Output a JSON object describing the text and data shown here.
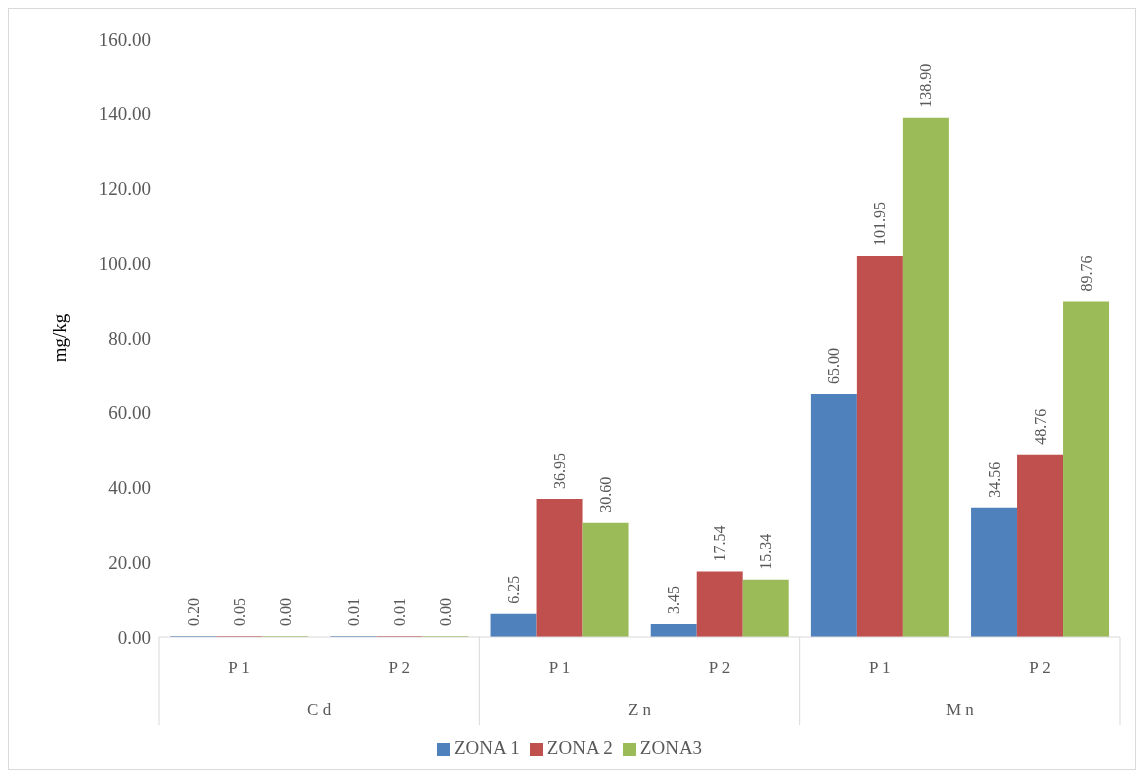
{
  "chart_data": {
    "type": "bar",
    "ylabel": "mg/kg",
    "categories": [
      "P 1",
      "P 2",
      "P 1",
      "P 2",
      "P 1",
      "P 2"
    ],
    "annotations": [
      "C d",
      "Z n",
      "M n"
    ],
    "series": [
      {
        "name": "ZONA 1",
        "color": "#4f81bd",
        "values": [
          0.2,
          0.01,
          6.25,
          3.45,
          65.0,
          34.56
        ],
        "value_labels": [
          "0.20",
          "0.01",
          "6.25",
          "3.45",
          "65.00",
          "34.56"
        ]
      },
      {
        "name": "ZONA 2",
        "color": "#c0504d",
        "values": [
          0.05,
          0.01,
          36.95,
          17.54,
          101.95,
          48.76
        ],
        "value_labels": [
          "0.05",
          "0.01",
          "36.95",
          "17.54",
          "101.95",
          "48.76"
        ]
      },
      {
        "name": "ZONA3",
        "color": "#9bbb59",
        "values": [
          0.0,
          0.0,
          30.6,
          15.34,
          138.9,
          89.76
        ],
        "value_labels": [
          "0.00",
          "0.00",
          "30.60",
          "15.34",
          "138.90",
          "89.76"
        ]
      }
    ],
    "ylim": [
      0,
      160
    ],
    "yticks": [
      {
        "value": 0,
        "label": "0.00"
      },
      {
        "value": 20,
        "label": "20.00"
      },
      {
        "value": 40,
        "label": "40.00"
      },
      {
        "value": 60,
        "label": "60.00"
      },
      {
        "value": 80,
        "label": "80.00"
      },
      {
        "value": 100,
        "label": "100.00"
      },
      {
        "value": 120,
        "label": "120.00"
      },
      {
        "value": 140,
        "label": "140.00"
      },
      {
        "value": 160,
        "label": "160.00"
      }
    ],
    "grid": false,
    "legend": "bottom"
  }
}
